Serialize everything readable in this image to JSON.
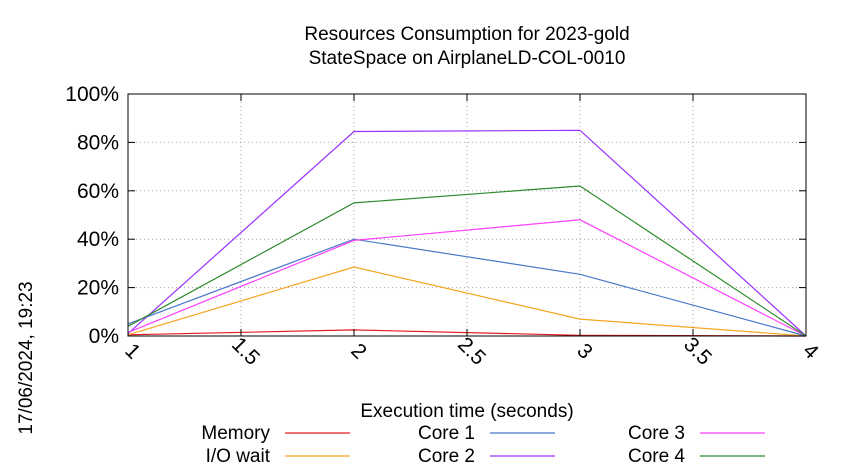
{
  "chart_data": {
    "type": "line",
    "title": [
      "Resources Consumption for 2023-gold",
      "StateSpace on AirplaneLD-COL-0010"
    ],
    "xlabel": "Execution time (seconds)",
    "ylabel": "",
    "timestamp": "17/06/2024, 19:23",
    "x": [
      1,
      2,
      3,
      4
    ],
    "xlim": [
      1,
      4
    ],
    "ylim": [
      0,
      100
    ],
    "x_ticks": [
      1,
      1.5,
      2,
      2.5,
      3,
      3.5,
      4
    ],
    "x_tick_labels": [
      "1",
      "1.5",
      "2",
      "2.5",
      "3",
      "3.5",
      "4"
    ],
    "y_ticks": [
      0,
      20,
      40,
      60,
      80,
      100
    ],
    "y_tick_labels": [
      "0%",
      "20%",
      "40%",
      "60%",
      "80%",
      "100%"
    ],
    "grid": true,
    "legend_position": "bottom",
    "series": [
      {
        "name": "Memory",
        "color": "#e41a1c",
        "values": [
          0.5,
          2.5,
          0.3,
          0
        ]
      },
      {
        "name": "I/O wait",
        "color": "#f5a623",
        "values": [
          0.5,
          28.5,
          7,
          0
        ]
      },
      {
        "name": "Core 1",
        "color": "#4a78c8",
        "values": [
          5,
          40,
          25.5,
          0
        ]
      },
      {
        "name": "Core 2",
        "color": "#9b30ff",
        "values": [
          1,
          84.5,
          85,
          0
        ]
      },
      {
        "name": "Core 3",
        "color": "#ff40ff",
        "values": [
          1.5,
          39.5,
          48,
          0
        ]
      },
      {
        "name": "Core 4",
        "color": "#2e8b2e",
        "values": [
          4,
          55,
          62,
          0
        ]
      }
    ]
  }
}
